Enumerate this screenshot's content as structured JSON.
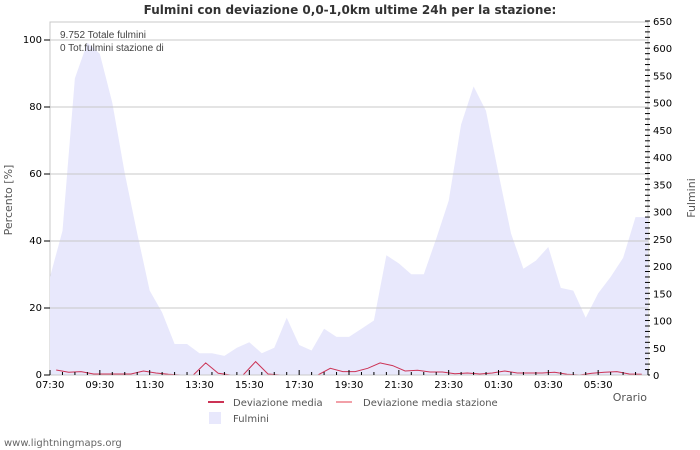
{
  "title": "Fulmini con deviazione 0,0-1,0km ultime 24h per la stazione:",
  "info": {
    "line1": "9.752 Totale fulmini",
    "line2": "0 Tot.fulmini stazione di"
  },
  "credit": "www.lightningmaps.org",
  "colors": {
    "area": "#e8e8fc",
    "deviation": "#cc3355",
    "deviation_station": "#f2a0a8",
    "grid": "#c8c8c8"
  },
  "chart_data": {
    "type": "area",
    "title": "Fulmini con deviazione 0,0-1,0km ultime 24h per la stazione:",
    "xlabel": "Orario",
    "ylabel": "Percento   [%]",
    "y2label": "Fulmini",
    "ylim": [
      0,
      100
    ],
    "y2lim": [
      0,
      650
    ],
    "yticks": [
      0,
      20,
      40,
      60,
      80,
      100
    ],
    "y2ticks": [
      0,
      50,
      100,
      150,
      200,
      250,
      300,
      350,
      400,
      450,
      500,
      550,
      600,
      650
    ],
    "xticks": [
      "07:30",
      "09:30",
      "11:30",
      "13:30",
      "15:30",
      "17:30",
      "19:30",
      "21:30",
      "23:30",
      "01:30",
      "03:30",
      "05:30"
    ],
    "grid": true,
    "legend": [
      "Deviazione media",
      "Deviazione media stazione",
      "Fulmini"
    ],
    "legend_position": "bottom",
    "x": [
      "07:30",
      "08:00",
      "08:30",
      "09:00",
      "09:30",
      "10:00",
      "10:30",
      "11:00",
      "11:30",
      "12:00",
      "12:30",
      "13:00",
      "13:30",
      "14:00",
      "14:30",
      "15:00",
      "15:30",
      "16:00",
      "16:30",
      "17:00",
      "17:30",
      "18:00",
      "18:30",
      "19:00",
      "19:30",
      "20:00",
      "20:30",
      "21:00",
      "21:30",
      "22:00",
      "22:30",
      "23:00",
      "23:30",
      "00:00",
      "00:30",
      "01:00",
      "01:30",
      "02:00",
      "02:30",
      "03:00",
      "03:30",
      "04:00",
      "04:30",
      "05:00",
      "05:30",
      "06:00",
      "06:30",
      "07:00"
    ],
    "series": [
      {
        "name": "Fulmini",
        "axis": "right",
        "values": [
          180,
          265,
          545,
          610,
          590,
          500,
          370,
          260,
          155,
          115,
          57,
          57,
          40,
          40,
          35,
          50,
          60,
          40,
          50,
          105,
          55,
          45,
          85,
          70,
          70,
          85,
          100,
          220,
          205,
          185,
          185,
          250,
          320,
          460,
          530,
          485,
          370,
          260,
          195,
          210,
          235,
          160,
          155,
          105,
          150,
          180,
          215,
          290
        ]
      },
      {
        "name": "Deviazione media",
        "axis": "left",
        "values": [
          1.5,
          0.8,
          1.0,
          0.3,
          0.3,
          0.3,
          0.3,
          1.2,
          0.6,
          0.2,
          0,
          0,
          3.6,
          0.5,
          0,
          0,
          4.0,
          0.3,
          0,
          0,
          0,
          0,
          2.0,
          1.0,
          1.0,
          2.0,
          3.6,
          2.8,
          1.2,
          1.4,
          0.9,
          0.9,
          0.4,
          0.6,
          0.3,
          0.6,
          1.2,
          0.6,
          0.6,
          0.6,
          0.8,
          0.2,
          0,
          0.5,
          0.8,
          1.0,
          0.3,
          0.2
        ]
      },
      {
        "name": "Deviazione media stazione",
        "axis": "left",
        "values": []
      }
    ]
  }
}
